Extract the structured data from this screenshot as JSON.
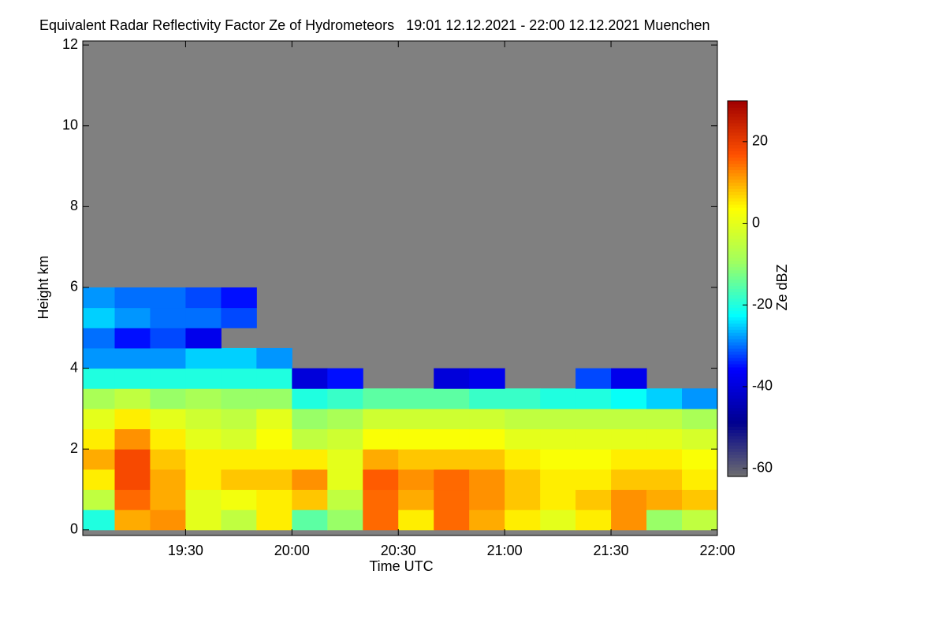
{
  "chart_data": {
    "type": "heatmap",
    "title": "Equivalent Radar Reflectivity Factor Ze of Hydrometeors   19:01 12.12.2021 - 22:00 12.12.2021 Muenchen",
    "x_label": "Time UTC",
    "y_label": "Height km",
    "colorbar_label": "Ze dBZ",
    "xlim": [
      19.0167,
      22.0
    ],
    "xticks": [
      {
        "value": 19.5,
        "label": "19:30"
      },
      {
        "value": 20.0,
        "label": "20:00"
      },
      {
        "value": 20.5,
        "label": "20:30"
      },
      {
        "value": 21.0,
        "label": "21:00"
      },
      {
        "value": 21.5,
        "label": "21:30"
      },
      {
        "value": 22.0,
        "label": "22:00"
      }
    ],
    "ylim": [
      -0.14,
      12.1
    ],
    "yticks": [
      0,
      2,
      4,
      6,
      8,
      10,
      12
    ],
    "clim": [
      -62,
      30
    ],
    "cticks": [
      20,
      0,
      -20,
      -40,
      -60
    ],
    "colormap": [
      "#6e6e6e",
      "#00008f",
      "#0000ff",
      "#00ffff",
      "#a0ff60",
      "#ffff00",
      "#ff5000",
      "#a00000"
    ],
    "background_color": "#808080",
    "x_bins": [
      19.0167,
      19.1667,
      19.3333,
      19.5,
      19.6667,
      19.8333,
      20.0,
      20.1667,
      20.3333,
      20.5,
      20.6667,
      20.8333,
      21.0,
      21.1667,
      21.3333,
      21.5,
      21.6667,
      21.8333,
      22.0
    ],
    "y_bins": [
      0,
      0.5,
      1,
      1.5,
      2,
      2.5,
      3,
      3.5,
      4,
      4.5,
      5,
      5.5,
      6
    ],
    "z": [
      [
        -20,
        10,
        12,
        0,
        -5,
        5,
        -15,
        -10,
        15,
        5,
        15,
        10,
        5,
        0,
        5,
        12,
        -10,
        -5
      ],
      [
        -5,
        15,
        10,
        0,
        2,
        5,
        8,
        -5,
        15,
        10,
        15,
        12,
        8,
        5,
        8,
        12,
        10,
        8
      ],
      [
        5,
        18,
        10,
        5,
        8,
        8,
        12,
        0,
        16,
        12,
        15,
        12,
        8,
        5,
        5,
        8,
        8,
        5
      ],
      [
        10,
        18,
        8,
        5,
        5,
        5,
        5,
        0,
        10,
        8,
        8,
        8,
        5,
        3,
        3,
        5,
        5,
        3
      ],
      [
        5,
        12,
        5,
        0,
        -2,
        3,
        -5,
        -3,
        3,
        3,
        3,
        3,
        0,
        0,
        0,
        0,
        0,
        -2
      ],
      [
        0,
        5,
        0,
        -3,
        -5,
        0,
        -10,
        -8,
        -3,
        -3,
        -3,
        -3,
        -5,
        -5,
        -5,
        -5,
        -5,
        -8
      ],
      [
        -8,
        -5,
        -10,
        -8,
        -10,
        -10,
        -20,
        -18,
        -15,
        -15,
        -15,
        -18,
        -18,
        -20,
        -20,
        -22,
        -25,
        -28
      ],
      [
        -20,
        -20,
        -20,
        -20,
        -20,
        -20,
        -40,
        -35,
        null,
        null,
        -40,
        -38,
        null,
        null,
        -32,
        -38,
        null,
        null
      ],
      [
        -28,
        -28,
        -28,
        -25,
        -25,
        -28,
        null,
        null,
        null,
        null,
        null,
        null,
        null,
        null,
        null,
        null,
        null,
        null
      ],
      [
        -30,
        -35,
        -32,
        -38,
        null,
        null,
        null,
        null,
        null,
        null,
        null,
        null,
        null,
        null,
        null,
        null,
        null,
        null
      ],
      [
        -25,
        -28,
        -30,
        -30,
        -32,
        null,
        null,
        null,
        null,
        null,
        null,
        null,
        null,
        null,
        null,
        null,
        null,
        null
      ],
      [
        -28,
        -30,
        -30,
        -32,
        -35,
        null,
        null,
        null,
        null,
        null,
        null,
        null,
        null,
        null,
        null,
        null,
        null,
        null
      ]
    ]
  }
}
